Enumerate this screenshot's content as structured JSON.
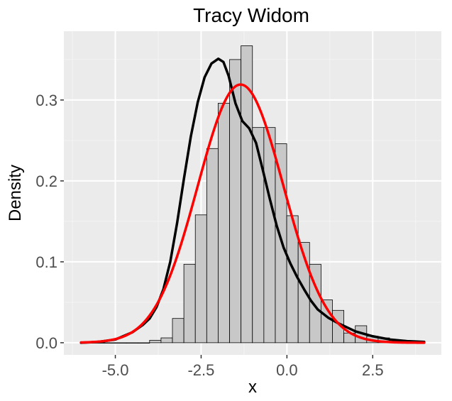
{
  "chart_data": {
    "type": "bar",
    "title": "Tracy Widom",
    "xlabel": "x",
    "ylabel": "Density",
    "xlim": [
      -6.5,
      4.5
    ],
    "ylim": [
      -0.015,
      0.385
    ],
    "x_ticks": [
      -5.0,
      -2.5,
      0.0,
      2.5
    ],
    "x_tick_labels": [
      "-5.0",
      "-2.5",
      "0.0",
      "2.5"
    ],
    "y_ticks": [
      0.0,
      0.1,
      0.2,
      0.3
    ],
    "y_tick_labels": [
      "0.0",
      "0.1",
      "0.2",
      "0.3"
    ],
    "grid": true,
    "colors": {
      "panel": "#ebebeb",
      "grid_major": "#ffffff",
      "grid_minor": "#f4f4f4",
      "bar_fill": "#c8c8c8",
      "bar_stroke": "#000000",
      "density": "#000000",
      "normal": "#ff0000"
    },
    "histogram": {
      "bin_width": 0.333,
      "bin_start": -6.0,
      "values": [
        0.0,
        0.0,
        0.0,
        0.0,
        0.0,
        0.0,
        0.003,
        0.006,
        0.03,
        0.097,
        0.158,
        0.24,
        0.296,
        0.35,
        0.367,
        0.266,
        0.266,
        0.246,
        0.157,
        0.124,
        0.097,
        0.053,
        0.04,
        0.012,
        0.021,
        0.008,
        0.006,
        0.003,
        0.0,
        0.0
      ]
    },
    "series": [
      {
        "kind": "density-line",
        "x": [
          -6.0,
          -5.5,
          -5.0,
          -4.5,
          -4.2,
          -4.0,
          -3.8,
          -3.6,
          -3.4,
          -3.2,
          -3.0,
          -2.8,
          -2.6,
          -2.4,
          -2.2,
          -2.0,
          -1.85,
          -1.7,
          -1.5,
          -1.3,
          -1.1,
          -0.9,
          -0.7,
          -0.5,
          -0.3,
          -0.1,
          0.1,
          0.3,
          0.5,
          0.7,
          0.9,
          1.2,
          1.5,
          2.0,
          2.5,
          3.0,
          3.5,
          4.0
        ],
        "y": [
          0.0,
          0.001,
          0.004,
          0.013,
          0.022,
          0.03,
          0.044,
          0.066,
          0.1,
          0.148,
          0.203,
          0.255,
          0.297,
          0.328,
          0.345,
          0.351,
          0.347,
          0.33,
          0.296,
          0.274,
          0.265,
          0.247,
          0.213,
          0.178,
          0.145,
          0.118,
          0.098,
          0.081,
          0.066,
          0.052,
          0.041,
          0.031,
          0.024,
          0.014,
          0.008,
          0.004,
          0.002,
          0.001
        ]
      },
      {
        "kind": "normal-curve",
        "mean": -1.35,
        "sd": 1.25
      }
    ]
  }
}
